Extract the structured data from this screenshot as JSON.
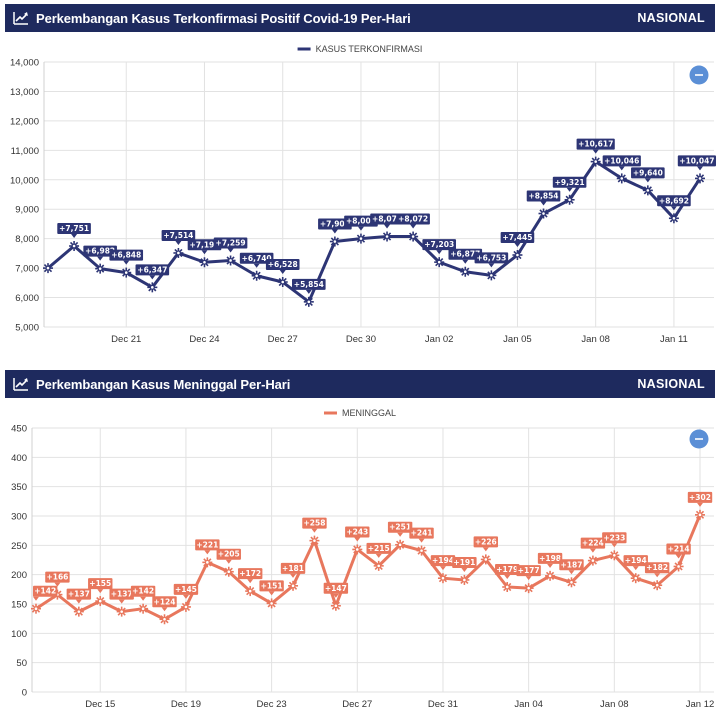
{
  "charts": [
    {
      "id": "confirmed",
      "header": {
        "title": "Perkembangan Kasus Terkonfirmasi Positif Covid-19 Per-Hari",
        "badge": "NASIONAL"
      },
      "icons": {
        "header": "line-chart-icon",
        "toggle": "minus-icon"
      },
      "colors": {
        "header_bg": "#1e2a5e",
        "series": "#2d3575",
        "toggle": "#5b8fd6"
      }
    },
    {
      "id": "deaths",
      "header": {
        "title": "Perkembangan Kasus Meninggal Per-Hari",
        "badge": "NASIONAL"
      },
      "icons": {
        "header": "line-chart-icon",
        "toggle": "minus-icon"
      },
      "colors": {
        "header_bg": "#1e2a5e",
        "series": "#e8775d",
        "toggle": "#5b8fd6"
      }
    }
  ],
  "chart_data": [
    {
      "type": "line",
      "title": "Perkembangan Kasus Terkonfirmasi Positif Covid-19 Per-Hari",
      "legend": "top-center",
      "grid": true,
      "ylim": [
        5000,
        14000
      ],
      "yticks": [
        5000,
        6000,
        7000,
        8000,
        9000,
        10000,
        11000,
        12000,
        13000,
        14000
      ],
      "xticks": [
        {
          "label": "Dec 21",
          "index": 3
        },
        {
          "label": "Dec 24",
          "index": 6
        },
        {
          "label": "Dec 27",
          "index": 9
        },
        {
          "label": "Dec 30",
          "index": 12
        },
        {
          "label": "Jan 02",
          "index": 15
        },
        {
          "label": "Jan 05",
          "index": 18
        },
        {
          "label": "Jan 08",
          "index": 21
        },
        {
          "label": "Jan 11",
          "index": 24
        }
      ],
      "x": [
        "Dec 18",
        "Dec 19",
        "Dec 20",
        "Dec 21",
        "Dec 22",
        "Dec 23",
        "Dec 24",
        "Dec 25",
        "Dec 26",
        "Dec 27",
        "Dec 28",
        "Dec 29",
        "Dec 30",
        "Dec 31",
        "Jan 01",
        "Jan 02",
        "Jan 03",
        "Jan 04",
        "Jan 05",
        "Jan 06",
        "Jan 07",
        "Jan 08",
        "Jan 09",
        "Jan 10",
        "Jan 11",
        "Jan 12"
      ],
      "series": [
        {
          "name": "KASUS TERKONFIRMASI",
          "values": [
            7000,
            7751,
            6982,
            6848,
            6347,
            7514,
            7199,
            7259,
            6740,
            6528,
            5854,
            7903,
            8002,
            8074,
            8072,
            7203,
            6877,
            6753,
            7445,
            8854,
            9321,
            10617,
            10046,
            9640,
            8692,
            10047
          ],
          "labels": [
            "",
            "+7,751",
            "+6,982",
            "+6,848",
            "+6,347",
            "+7,514",
            "+7,199",
            "+7,259",
            "+6,740",
            "+6,528",
            "+5,854",
            "+7,903",
            "+8,002",
            "+8,074",
            "+8,072",
            "+7,203",
            "+6,877",
            "+6,753",
            "+7,445",
            "+8,854",
            "+9,321",
            "+10,617",
            "+10,046",
            "+9,640",
            "+8,692",
            "+10,047"
          ]
        }
      ]
    },
    {
      "type": "line",
      "title": "Perkembangan Kasus Meninggal Per-Hari",
      "legend": "top-center",
      "grid": true,
      "ylim": [
        0,
        450
      ],
      "yticks": [
        0,
        50,
        100,
        150,
        200,
        250,
        300,
        350,
        400,
        450
      ],
      "xticks": [
        {
          "label": "Dec 15",
          "index": 3
        },
        {
          "label": "Dec 19",
          "index": 7
        },
        {
          "label": "Dec 23",
          "index": 11
        },
        {
          "label": "Dec 27",
          "index": 15
        },
        {
          "label": "Dec 31",
          "index": 19
        },
        {
          "label": "Jan 04",
          "index": 23
        },
        {
          "label": "Jan 08",
          "index": 27
        },
        {
          "label": "Jan 12",
          "index": 31
        }
      ],
      "x": [
        "Dec 12",
        "Dec 13",
        "Dec 14",
        "Dec 15",
        "Dec 16",
        "Dec 17",
        "Dec 18",
        "Dec 19",
        "Dec 20",
        "Dec 21",
        "Dec 22",
        "Dec 23",
        "Dec 24",
        "Dec 25",
        "Dec 26",
        "Dec 27",
        "Dec 28",
        "Dec 29",
        "Dec 30",
        "Dec 31",
        "Jan 01",
        "Jan 02",
        "Jan 03",
        "Jan 04",
        "Jan 05",
        "Jan 06",
        "Jan 07",
        "Jan 08",
        "Jan 09",
        "Jan 10",
        "Jan 11",
        "Jan 12"
      ],
      "series": [
        {
          "name": "MENINGGAL",
          "values": [
            142,
            166,
            137,
            155,
            137,
            142,
            124,
            145,
            221,
            205,
            172,
            151,
            181,
            258,
            147,
            243,
            215,
            251,
            241,
            194,
            191,
            226,
            179,
            177,
            198,
            187,
            224,
            233,
            194,
            182,
            214,
            302
          ],
          "labels": [
            "+142",
            "+166",
            "+137",
            "+155",
            "+137",
            "+142",
            "+124",
            "+145",
            "+221",
            "+205",
            "+172",
            "+151",
            "+181",
            "+258",
            "+147",
            "+243",
            "+215",
            "+251",
            "+241",
            "+194",
            "+191",
            "+226",
            "+179",
            "+177",
            "+198",
            "+187",
            "+224",
            "+233",
            "+194",
            "+182",
            "+214",
            "+302"
          ]
        }
      ]
    }
  ]
}
